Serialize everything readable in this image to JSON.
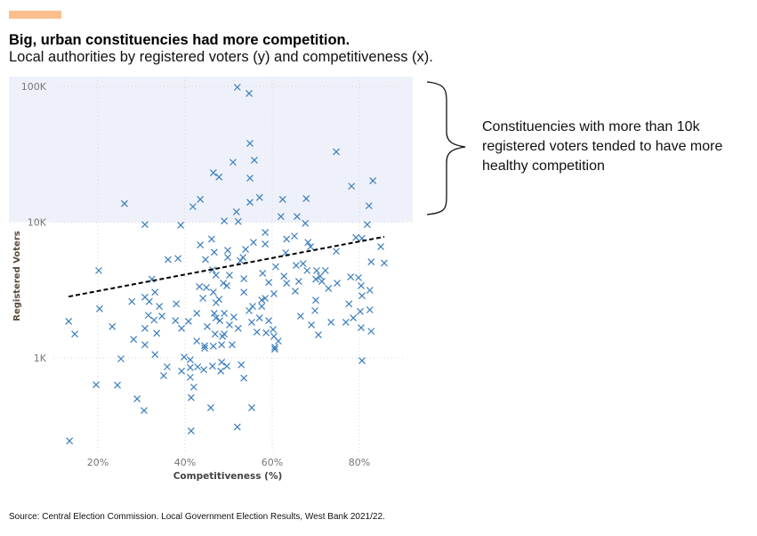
{
  "header": {
    "title": "Big, urban constituencies had more competition.",
    "subtitle": "Local authorities by registered voters (y) and competitiveness (x).",
    "accent_color": "#fdbf8e"
  },
  "annotation": {
    "text": "Constituencies with more than 10k registered voters tended to have more healthy competition"
  },
  "source": "Source: Central Election Commission. Local Government Election Results, West Bank 2021/22.",
  "chart_data": {
    "type": "scatter",
    "xlabel": "Competitiveness (%)",
    "ylabel": "Registered Voters",
    "x_ticks": [
      {
        "value": 20,
        "label": "20%"
      },
      {
        "value": 40,
        "label": "40%"
      },
      {
        "value": 60,
        "label": "60%"
      },
      {
        "value": 80,
        "label": "80%"
      }
    ],
    "y_ticks": [
      {
        "value": 1000,
        "label": "1K"
      },
      {
        "value": 10000,
        "label": "10K"
      },
      {
        "value": 100000,
        "label": "100K"
      }
    ],
    "y_scale": "log",
    "xlim": [
      0,
      92
    ],
    "ylim": [
      200,
      115000
    ],
    "highlight_region": {
      "y_min": 10000,
      "color": "#eef1f9"
    },
    "marker_color": "#3b7dbd",
    "trendline": {
      "x": [
        13.3,
        85.7
      ],
      "y": [
        2830,
        7800
      ],
      "style": "dashed"
    },
    "points": [
      [
        52.0,
        98500
      ],
      [
        54.7,
        88700
      ],
      [
        54.9,
        38000
      ],
      [
        74.7,
        33000
      ],
      [
        55.9,
        28600
      ],
      [
        51.0,
        27600
      ],
      [
        46.5,
        23100
      ],
      [
        47.8,
        21500
      ],
      [
        54.9,
        21100
      ],
      [
        83.1,
        20200
      ],
      [
        78.2,
        18400
      ],
      [
        57.1,
        15200
      ],
      [
        62.4,
        14700
      ],
      [
        67.8,
        14900
      ],
      [
        26.1,
        13700
      ],
      [
        43.5,
        14700
      ],
      [
        41.8,
        13000
      ],
      [
        54.9,
        14000
      ],
      [
        82.2,
        13200
      ],
      [
        51.8,
        11900
      ],
      [
        62.0,
        11000
      ],
      [
        65.7,
        11000
      ],
      [
        49.0,
        10200
      ],
      [
        52.2,
        10100
      ],
      [
        30.8,
        9600
      ],
      [
        39.0,
        9500
      ],
      [
        67.6,
        9800
      ],
      [
        81.8,
        9600
      ],
      [
        20.2,
        4400
      ],
      [
        13.3,
        1860
      ],
      [
        14.7,
        1500
      ],
      [
        20.4,
        2300
      ],
      [
        23.3,
        1700
      ],
      [
        27.8,
        2600
      ],
      [
        30.8,
        2800
      ],
      [
        31.8,
        2600
      ],
      [
        33.1,
        3050
      ],
      [
        32.4,
        3800
      ],
      [
        34.1,
        2400
      ],
      [
        36.1,
        5300
      ],
      [
        38.4,
        5400
      ],
      [
        38.0,
        2500
      ],
      [
        31.6,
        2060
      ],
      [
        32.9,
        1900
      ],
      [
        34.7,
        2030
      ],
      [
        30.8,
        1650
      ],
      [
        28.2,
        1370
      ],
      [
        33.5,
        1520
      ],
      [
        37.8,
        1880
      ],
      [
        39.2,
        1650
      ],
      [
        40.8,
        1860
      ],
      [
        42.7,
        2130
      ],
      [
        43.5,
        6800
      ],
      [
        46.1,
        7500
      ],
      [
        46.7,
        6000
      ],
      [
        44.7,
        5300
      ],
      [
        49.8,
        6200
      ],
      [
        49.8,
        5500
      ],
      [
        53.9,
        6300
      ],
      [
        55.7,
        7100
      ],
      [
        58.4,
        8400
      ],
      [
        58.4,
        6900
      ],
      [
        63.3,
        7500
      ],
      [
        65.1,
        7900
      ],
      [
        68.2,
        7100
      ],
      [
        68.8,
        6600
      ],
      [
        74.7,
        6100
      ],
      [
        79.2,
        7700
      ],
      [
        80.6,
        7600
      ],
      [
        84.9,
        6600
      ],
      [
        82.7,
        5100
      ],
      [
        85.7,
        5000
      ],
      [
        63.1,
        5950
      ],
      [
        65.5,
        4800
      ],
      [
        67.1,
        4950
      ],
      [
        60.8,
        4700
      ],
      [
        53.3,
        5500
      ],
      [
        52.7,
        5200
      ],
      [
        46.3,
        4450
      ],
      [
        47.1,
        4070
      ],
      [
        50.2,
        4070
      ],
      [
        53.5,
        3830
      ],
      [
        57.8,
        4200
      ],
      [
        59.2,
        3600
      ],
      [
        62.7,
        4000
      ],
      [
        63.3,
        3550
      ],
      [
        66.1,
        3660
      ],
      [
        68.0,
        4400
      ],
      [
        70.2,
        4400
      ],
      [
        72.2,
        4400
      ],
      [
        71.0,
        4000
      ],
      [
        70.0,
        3800
      ],
      [
        71.4,
        3660
      ],
      [
        72.9,
        3250
      ],
      [
        74.9,
        3550
      ],
      [
        78.0,
        3950
      ],
      [
        79.8,
        3900
      ],
      [
        80.4,
        3400
      ],
      [
        82.4,
        3150
      ],
      [
        80.6,
        2870
      ],
      [
        70.0,
        2660
      ],
      [
        69.8,
        2230
      ],
      [
        77.6,
        2500
      ],
      [
        80.2,
        2200
      ],
      [
        82.4,
        2260
      ],
      [
        66.5,
        2030
      ],
      [
        69.0,
        1750
      ],
      [
        73.5,
        1830
      ],
      [
        76.9,
        1830
      ],
      [
        78.6,
        1970
      ],
      [
        80.4,
        1670
      ],
      [
        82.7,
        1570
      ],
      [
        70.6,
        1480
      ],
      [
        65.3,
        3100
      ],
      [
        60.4,
        2970
      ],
      [
        58.4,
        2750
      ],
      [
        57.6,
        2670
      ],
      [
        57.6,
        2400
      ],
      [
        55.5,
        2400
      ],
      [
        54.7,
        2230
      ],
      [
        53.5,
        3050
      ],
      [
        48.8,
        3550
      ],
      [
        49.6,
        3400
      ],
      [
        43.3,
        3350
      ],
      [
        44.9,
        3300
      ],
      [
        44.1,
        2750
      ],
      [
        46.5,
        3050
      ],
      [
        47.8,
        2700
      ],
      [
        47.1,
        2550
      ],
      [
        46.7,
        2130
      ],
      [
        49.0,
        2130
      ],
      [
        47.1,
        1970
      ],
      [
        48.0,
        1880
      ],
      [
        51.2,
        2000
      ],
      [
        55.3,
        1830
      ],
      [
        57.1,
        1970
      ],
      [
        59.2,
        1880
      ],
      [
        45.1,
        1700
      ],
      [
        50.2,
        1750
      ],
      [
        52.2,
        1650
      ],
      [
        56.5,
        1550
      ],
      [
        58.6,
        1530
      ],
      [
        60.2,
        1620
      ],
      [
        60.4,
        1440
      ],
      [
        61.4,
        1330
      ],
      [
        46.9,
        1500
      ],
      [
        49.0,
        1500
      ],
      [
        48.6,
        1440
      ],
      [
        42.7,
        1330
      ],
      [
        44.5,
        1230
      ],
      [
        46.5,
        1220
      ],
      [
        48.4,
        1250
      ],
      [
        50.8,
        1250
      ],
      [
        30.8,
        1250
      ],
      [
        60.6,
        1200
      ],
      [
        33.1,
        1060
      ],
      [
        25.3,
        985
      ],
      [
        39.8,
        1015
      ],
      [
        41.2,
        970
      ],
      [
        35.9,
        860
      ],
      [
        35.1,
        740
      ],
      [
        39.2,
        800
      ],
      [
        41.2,
        850
      ],
      [
        42.9,
        860
      ],
      [
        44.3,
        820
      ],
      [
        46.3,
        870
      ],
      [
        48.4,
        930
      ],
      [
        48.2,
        800
      ],
      [
        49.6,
        870
      ],
      [
        52.9,
        890
      ],
      [
        53.5,
        710
      ],
      [
        41.2,
        720
      ],
      [
        42.0,
        610
      ],
      [
        41.4,
        510
      ],
      [
        45.9,
        430
      ],
      [
        55.3,
        430
      ],
      [
        52.0,
        310
      ],
      [
        41.4,
        290
      ],
      [
        30.6,
        410
      ],
      [
        29.0,
        500
      ],
      [
        24.5,
        630
      ],
      [
        19.6,
        635
      ],
      [
        13.5,
        245
      ],
      [
        80.6,
        955
      ],
      [
        60.6,
        1160
      ],
      [
        44.5,
        1180
      ]
    ]
  }
}
